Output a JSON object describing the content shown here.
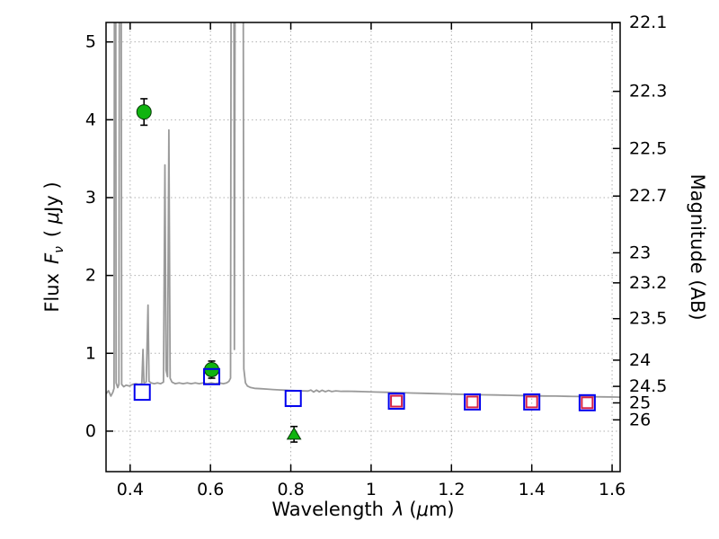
{
  "axes": {
    "xlabel": {
      "full": "Wavelength λ (μm)",
      "prefix": "Wavelength",
      "symbol": "λ",
      "unit_pre": "(",
      "mu": "μ",
      "unit_post": "m)"
    },
    "left": {
      "full": "Flux Fν ( μJy )",
      "prefix": "Flux",
      "symbol": "F",
      "sub": "ν",
      "unit_pre": "( ",
      "mu": "μ",
      "unit_post": "Jy )"
    },
    "right": {
      "full": "Magnitude (AB)"
    }
  },
  "chart_data": {
    "type": "line+scatter",
    "title": "",
    "xlabel": "Wavelength λ (μm)",
    "ylabel_left": "Flux Fν ( μJy )",
    "ylabel_right": "Magnitude (AB)",
    "xlim": [
      0.34,
      1.62
    ],
    "ylim": [
      -0.52,
      5.25
    ],
    "grid": true,
    "x_ticks": [
      0.4,
      0.6,
      0.8,
      1.0,
      1.2,
      1.4,
      1.6
    ],
    "x_tick_labels": [
      "0.4",
      "0.6",
      "0.8",
      "1",
      "1.2",
      "1.4",
      "1.6"
    ],
    "y_ticks_left": [
      0,
      1,
      2,
      3,
      4,
      5
    ],
    "y_tick_labels_left": [
      "0",
      "1",
      "2",
      "3",
      "4",
      "5"
    ],
    "y_tick_labels_right": [
      "22.1",
      "22.3",
      "22.5",
      "22.7",
      "23",
      "23.2",
      "23.5",
      "24",
      "24.5",
      "25",
      "26"
    ],
    "y_ticks_right_flux": [
      5.248,
      4.365,
      3.631,
      3.02,
      2.291,
      1.905,
      1.445,
      0.912,
      0.575,
      0.363,
      0.145
    ],
    "colors": {
      "spectrum": "#9a9a9a",
      "green": "#10b410",
      "blue": "#0000ee",
      "red": "#d62246",
      "grid": "#b0b0b0",
      "errorbar": "#000000",
      "frame": "#000000"
    },
    "series": [
      {
        "name": "model-spectrum-line",
        "type": "line",
        "color": "#9a9a9a",
        "points": [
          [
            0.34,
            0.48
          ],
          [
            0.346,
            0.52
          ],
          [
            0.352,
            0.45
          ],
          [
            0.357,
            0.5
          ],
          [
            0.36,
            0.55
          ],
          [
            0.3615,
            9.0
          ],
          [
            0.3635,
            9.0
          ],
          [
            0.365,
            0.62
          ],
          [
            0.369,
            0.56
          ],
          [
            0.372,
            0.6
          ],
          [
            0.374,
            9.0
          ],
          [
            0.377,
            9.0
          ],
          [
            0.379,
            0.6
          ],
          [
            0.384,
            0.57
          ],
          [
            0.39,
            0.59
          ],
          [
            0.398,
            0.58
          ],
          [
            0.406,
            0.6
          ],
          [
            0.414,
            0.61
          ],
          [
            0.422,
            0.6
          ],
          [
            0.429,
            0.61
          ],
          [
            0.432,
            1.05
          ],
          [
            0.4345,
            0.62
          ],
          [
            0.44,
            0.63
          ],
          [
            0.4445,
            1.62
          ],
          [
            0.447,
            0.64
          ],
          [
            0.452,
            0.62
          ],
          [
            0.46,
            0.61
          ],
          [
            0.468,
            0.62
          ],
          [
            0.476,
            0.61
          ],
          [
            0.483,
            0.63
          ],
          [
            0.4865,
            3.42
          ],
          [
            0.4895,
            0.78
          ],
          [
            0.493,
            0.7
          ],
          [
            0.4965,
            3.87
          ],
          [
            0.4995,
            0.68
          ],
          [
            0.504,
            0.63
          ],
          [
            0.512,
            0.61
          ],
          [
            0.522,
            0.62
          ],
          [
            0.532,
            0.61
          ],
          [
            0.542,
            0.62
          ],
          [
            0.552,
            0.61
          ],
          [
            0.562,
            0.62
          ],
          [
            0.572,
            0.61
          ],
          [
            0.582,
            0.62
          ],
          [
            0.592,
            0.61
          ],
          [
            0.602,
            0.62
          ],
          [
            0.612,
            0.61
          ],
          [
            0.622,
            0.62
          ],
          [
            0.632,
            0.61
          ],
          [
            0.64,
            0.62
          ],
          [
            0.646,
            0.64
          ],
          [
            0.65,
            0.68
          ],
          [
            0.6525,
            9.0
          ],
          [
            0.6575,
            9.0
          ],
          [
            0.6595,
            1.05
          ],
          [
            0.6625,
            9.0
          ],
          [
            0.6805,
            9.0
          ],
          [
            0.683,
            0.8
          ],
          [
            0.687,
            0.62
          ],
          [
            0.692,
            0.58
          ],
          [
            0.7,
            0.56
          ],
          [
            0.71,
            0.55
          ],
          [
            0.725,
            0.545
          ],
          [
            0.74,
            0.54
          ],
          [
            0.755,
            0.535
          ],
          [
            0.77,
            0.53
          ],
          [
            0.785,
            0.527
          ],
          [
            0.8,
            0.523
          ],
          [
            0.815,
            0.52
          ],
          [
            0.83,
            0.517
          ],
          [
            0.843,
            0.515
          ],
          [
            0.85,
            0.528
          ],
          [
            0.857,
            0.503
          ],
          [
            0.864,
            0.527
          ],
          [
            0.871,
            0.505
          ],
          [
            0.878,
            0.525
          ],
          [
            0.886,
            0.507
          ],
          [
            0.894,
            0.522
          ],
          [
            0.902,
            0.508
          ],
          [
            0.912,
            0.518
          ],
          [
            0.925,
            0.512
          ],
          [
            0.94,
            0.513
          ],
          [
            0.96,
            0.51
          ],
          [
            0.985,
            0.507
          ],
          [
            1.01,
            0.503
          ],
          [
            1.04,
            0.499
          ],
          [
            1.07,
            0.495
          ],
          [
            1.1,
            0.49
          ],
          [
            1.13,
            0.486
          ],
          [
            1.16,
            0.482
          ],
          [
            1.19,
            0.478
          ],
          [
            1.22,
            0.474
          ],
          [
            1.25,
            0.47
          ],
          [
            1.28,
            0.467
          ],
          [
            1.31,
            0.464
          ],
          [
            1.34,
            0.461
          ],
          [
            1.37,
            0.458
          ],
          [
            1.4,
            0.455
          ],
          [
            1.43,
            0.452
          ],
          [
            1.46,
            0.45
          ],
          [
            1.49,
            0.447
          ],
          [
            1.52,
            0.445
          ],
          [
            1.55,
            0.442
          ],
          [
            1.58,
            0.44
          ],
          [
            1.61,
            0.438
          ],
          [
            1.62,
            0.437
          ]
        ]
      },
      {
        "name": "green-circle-points",
        "type": "scatter",
        "marker": "circle",
        "color": "#10b410",
        "points": [
          [
            0.4345,
            4.1,
            0.17
          ],
          [
            0.603,
            0.79,
            0.11
          ]
        ]
      },
      {
        "name": "green-triangle-point",
        "type": "scatter",
        "marker": "triangle-up",
        "color": "#10b410",
        "points": [
          [
            0.808,
            -0.04,
            0.1
          ]
        ]
      },
      {
        "name": "blue-square-points",
        "type": "scatter",
        "marker": "square-open",
        "color": "#0000ee",
        "size": 17,
        "points": [
          [
            0.43,
            0.5
          ],
          [
            0.603,
            0.7
          ],
          [
            0.806,
            0.42
          ],
          [
            1.063,
            0.385
          ],
          [
            1.252,
            0.375
          ],
          [
            1.4,
            0.375
          ],
          [
            1.538,
            0.365
          ]
        ]
      },
      {
        "name": "red-square-points",
        "type": "scatter",
        "marker": "square-open",
        "color": "#d62246",
        "size": 12,
        "points": [
          [
            1.063,
            0.385
          ],
          [
            1.252,
            0.375
          ],
          [
            1.4,
            0.375
          ],
          [
            1.538,
            0.365
          ]
        ]
      }
    ]
  }
}
